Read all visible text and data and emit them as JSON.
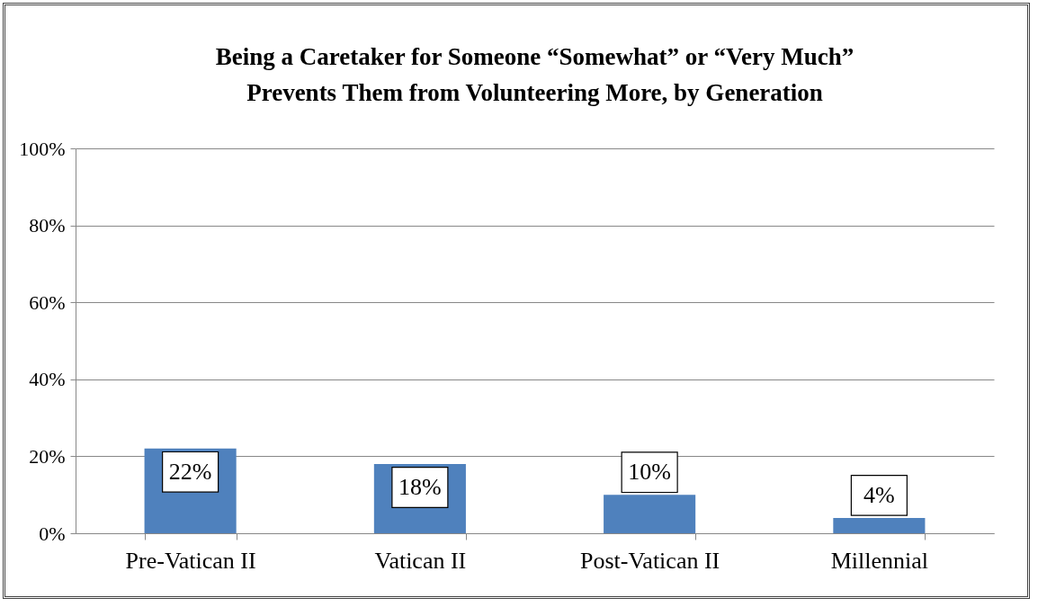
{
  "chart_data": {
    "type": "bar",
    "title": "Being a Caretaker for Someone “Somewhat” or “Very Much”\nPrevents Them from Volunteering More, by Generation",
    "categories": [
      "Pre-Vatican II",
      "Vatican II",
      "Post-Vatican II",
      "Millennial"
    ],
    "values": [
      22,
      18,
      10,
      4
    ],
    "color": "#4f81bd",
    "value_labels": [
      "22%",
      "18%",
      "10%",
      "4%"
    ],
    "ylim": [
      0,
      100
    ],
    "yticks": [
      {
        "value": 0,
        "label": "0%"
      },
      {
        "value": 20,
        "label": "20%"
      },
      {
        "value": 40,
        "label": "40%"
      },
      {
        "value": 60,
        "label": "60%"
      },
      {
        "value": 80,
        "label": "80%"
      },
      {
        "value": 100,
        "label": "100%"
      }
    ],
    "grid": "y"
  }
}
